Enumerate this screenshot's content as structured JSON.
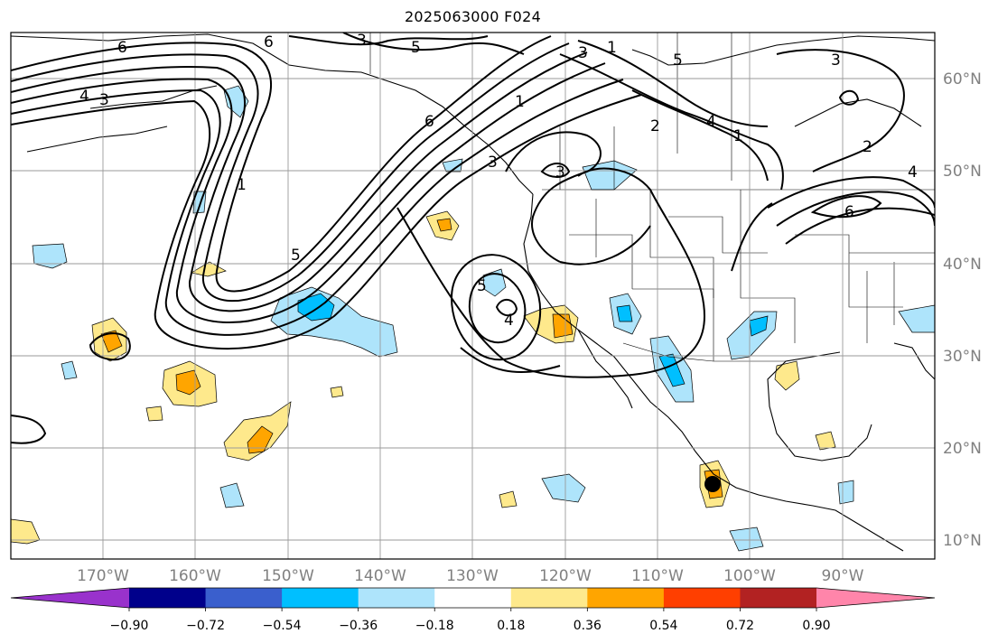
{
  "title": "2025063000 F024",
  "map": {
    "lat_labels": [
      "60°N",
      "50°N",
      "40°N",
      "30°N",
      "20°N",
      "10°N"
    ],
    "lon_labels": [
      "170°W",
      "160°W",
      "150°W",
      "140°W",
      "130°W",
      "120°W",
      "110°W",
      "100°W",
      "90°W"
    ],
    "contour_labels": [
      "6",
      "3",
      "5",
      "3",
      "1",
      "6",
      "4",
      "3",
      "2",
      "1",
      "5",
      "4",
      "3",
      "5",
      "6",
      "5",
      "4",
      "1",
      "2",
      "3",
      "3",
      "4",
      "1",
      "6"
    ],
    "marker": "storm-center-dot"
  },
  "colorbar": {
    "ticks": [
      "−0.90",
      "−0.72",
      "−0.54",
      "−0.36",
      "−0.18",
      "0.18",
      "0.36",
      "0.54",
      "0.72",
      "0.90"
    ],
    "colors": [
      "#9932cc",
      "#00008b",
      "#3a5fcd",
      "#00bfff",
      "#aee4fb",
      "#ffffff",
      "#fee98c",
      "#ffa500",
      "#ff3f00",
      "#b22222",
      "#ff85aa"
    ]
  }
}
